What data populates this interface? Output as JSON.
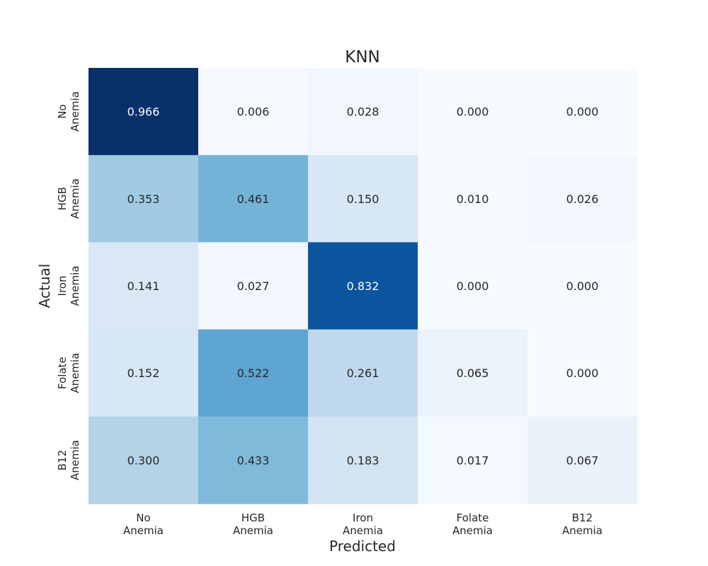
{
  "chart_data": {
    "type": "heatmap",
    "title": "KNN",
    "xlabel": "Predicted",
    "ylabel": "Actual",
    "x_categories": [
      [
        "No",
        "Anemia"
      ],
      [
        "HGB",
        "Anemia"
      ],
      [
        "Iron",
        "Anemia"
      ],
      [
        "Folate",
        "Anemia"
      ],
      [
        "B12",
        "Anemia"
      ]
    ],
    "y_categories": [
      [
        "No",
        "Anemia"
      ],
      [
        "HGB",
        "Anemia"
      ],
      [
        "Iron",
        "Anemia"
      ],
      [
        "Folate",
        "Anemia"
      ],
      [
        "B12",
        "Anemia"
      ]
    ],
    "values": [
      [
        0.966,
        0.006,
        0.028,
        0.0,
        0.0
      ],
      [
        0.353,
        0.461,
        0.15,
        0.01,
        0.026
      ],
      [
        0.141,
        0.027,
        0.832,
        0.0,
        0.0
      ],
      [
        0.152,
        0.522,
        0.261,
        0.065,
        0.0
      ],
      [
        0.3,
        0.433,
        0.183,
        0.017,
        0.067
      ]
    ],
    "value_format": "0.000",
    "colormap": "Blues",
    "vmin": 0,
    "vmax": 0.966,
    "colorbar": false
  }
}
